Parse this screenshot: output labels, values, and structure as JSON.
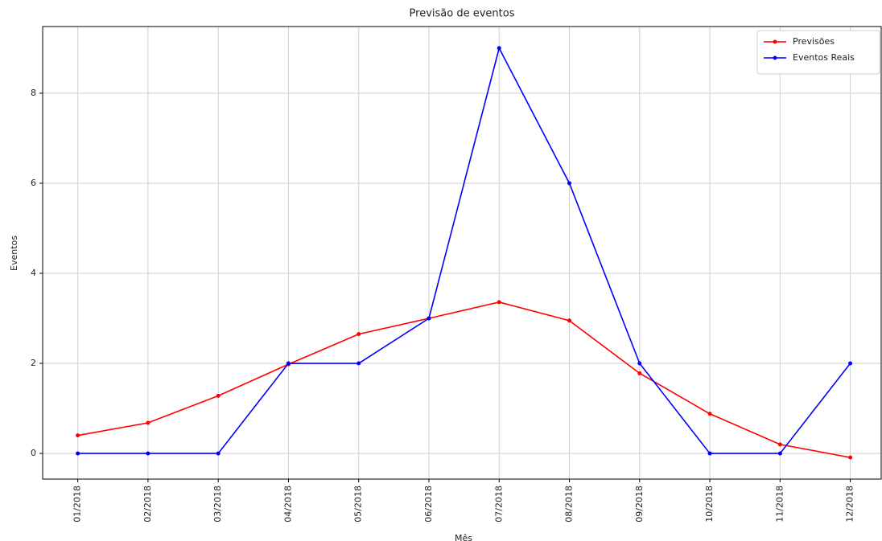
{
  "chart_data": {
    "type": "line",
    "title": "Previsão de eventos",
    "x_label": "Mês",
    "y_label": "Eventos",
    "categories": [
      "01/2018",
      "02/2018",
      "03/2018",
      "04/2018",
      "05/2018",
      "06/2018",
      "07/2018",
      "08/2018",
      "09/2018",
      "10/2018",
      "11/2018",
      "12/2018"
    ],
    "series": [
      {
        "name": "Previsões",
        "color": "#ff0000",
        "values": [
          0.4,
          0.68,
          1.28,
          1.98,
          2.65,
          3.0,
          3.36,
          2.95,
          1.78,
          0.88,
          0.2,
          -0.09
        ]
      },
      {
        "name": "Eventos Reais",
        "color": "#0000ff",
        "values": [
          0,
          0,
          0,
          2,
          2,
          3,
          9,
          6,
          2,
          0,
          0,
          2
        ]
      }
    ],
    "ylim": [
      -0.57,
      9.48
    ],
    "yticks": [
      0,
      2,
      4,
      6,
      8
    ],
    "grid": true,
    "legend": "upper right"
  }
}
